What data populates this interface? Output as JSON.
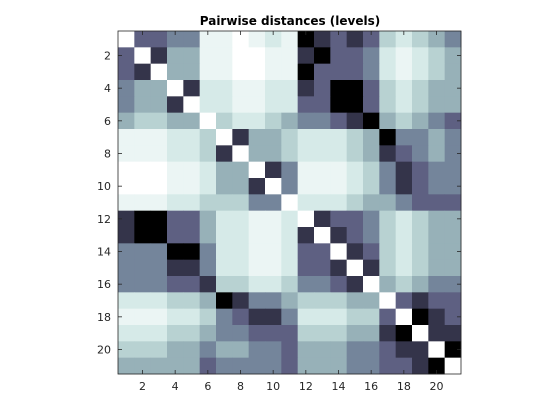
{
  "chart_data": {
    "type": "heatmap",
    "title": "Pairwise distances (levels)",
    "xlabel": "",
    "ylabel": "",
    "colormap": "bone",
    "x_ticks": [
      2,
      4,
      6,
      8,
      10,
      12,
      14,
      16,
      18,
      20
    ],
    "y_ticks": [
      2,
      4,
      6,
      8,
      10,
      12,
      14,
      16,
      18,
      20
    ],
    "matrix_rows": [
      [
        0,
        6,
        6,
        5,
        5,
        1,
        1,
        0,
        1,
        2,
        1,
        8,
        7,
        6,
        7,
        6,
        3,
        2,
        3,
        4,
        5
      ],
      [
        6,
        0,
        7,
        4,
        4,
        1,
        1,
        0,
        0,
        1,
        1,
        7,
        8,
        6,
        6,
        5,
        2,
        1,
        2,
        3,
        4
      ],
      [
        6,
        7,
        0,
        4,
        4,
        1,
        1,
        0,
        0,
        1,
        1,
        8,
        6,
        6,
        6,
        5,
        2,
        1,
        2,
        3,
        4
      ],
      [
        5,
        4,
        4,
        0,
        7,
        2,
        2,
        1,
        1,
        2,
        2,
        7,
        6,
        8,
        8,
        6,
        3,
        2,
        3,
        4,
        4
      ],
      [
        5,
        4,
        4,
        7,
        0,
        2,
        2,
        1,
        1,
        2,
        2,
        6,
        6,
        8,
        8,
        6,
        3,
        2,
        3,
        4,
        4
      ],
      [
        4,
        3,
        3,
        4,
        4,
        0,
        3,
        2,
        2,
        3,
        4,
        5,
        5,
        6,
        7,
        8,
        4,
        3,
        4,
        5,
        6
      ],
      [
        1,
        1,
        1,
        2,
        2,
        3,
        0,
        7,
        4,
        4,
        3,
        2,
        2,
        2,
        3,
        4,
        8,
        5,
        5,
        4,
        5
      ],
      [
        1,
        1,
        1,
        2,
        2,
        3,
        7,
        0,
        4,
        4,
        3,
        2,
        2,
        2,
        3,
        4,
        7,
        6,
        5,
        4,
        5
      ],
      [
        0,
        0,
        0,
        1,
        1,
        2,
        4,
        4,
        0,
        7,
        5,
        1,
        1,
        1,
        2,
        3,
        5,
        7,
        6,
        5,
        5
      ],
      [
        0,
        0,
        0,
        1,
        1,
        2,
        4,
        4,
        7,
        0,
        5,
        1,
        1,
        1,
        2,
        3,
        5,
        7,
        6,
        5,
        5
      ],
      [
        1,
        1,
        1,
        2,
        2,
        3,
        3,
        3,
        5,
        5,
        0,
        2,
        2,
        2,
        3,
        4,
        4,
        5,
        6,
        6,
        6
      ],
      [
        7,
        8,
        8,
        6,
        6,
        4,
        2,
        2,
        1,
        1,
        2,
        0,
        7,
        6,
        6,
        5,
        3,
        2,
        3,
        4,
        4
      ],
      [
        7,
        8,
        8,
        6,
        6,
        4,
        2,
        2,
        1,
        1,
        2,
        7,
        0,
        7,
        6,
        5,
        3,
        2,
        3,
        4,
        4
      ],
      [
        5,
        5,
        5,
        8,
        8,
        5,
        2,
        2,
        1,
        1,
        2,
        6,
        6,
        0,
        7,
        6,
        3,
        2,
        3,
        4,
        4
      ],
      [
        5,
        5,
        5,
        7,
        7,
        5,
        2,
        2,
        1,
        1,
        2,
        6,
        6,
        7,
        0,
        7,
        3,
        2,
        3,
        4,
        4
      ],
      [
        5,
        5,
        5,
        6,
        6,
        7,
        3,
        3,
        2,
        2,
        3,
        5,
        5,
        6,
        7,
        0,
        4,
        3,
        4,
        5,
        5
      ],
      [
        2,
        2,
        2,
        3,
        3,
        4,
        8,
        7,
        5,
        5,
        4,
        3,
        3,
        3,
        4,
        4,
        0,
        6,
        7,
        6,
        6
      ],
      [
        1,
        1,
        1,
        2,
        2,
        3,
        5,
        6,
        7,
        7,
        5,
        2,
        2,
        2,
        3,
        3,
        6,
        0,
        8,
        7,
        6
      ],
      [
        2,
        2,
        2,
        3,
        3,
        4,
        5,
        5,
        6,
        6,
        6,
        3,
        3,
        3,
        4,
        4,
        7,
        8,
        0,
        7,
        7
      ],
      [
        3,
        3,
        3,
        4,
        4,
        5,
        4,
        4,
        5,
        5,
        6,
        4,
        4,
        4,
        5,
        5,
        6,
        7,
        7,
        0,
        8
      ],
      [
        4,
        4,
        4,
        4,
        4,
        6,
        5,
        5,
        5,
        5,
        6,
        4,
        4,
        4,
        5,
        5,
        6,
        6,
        7,
        8,
        0
      ]
    ]
  }
}
